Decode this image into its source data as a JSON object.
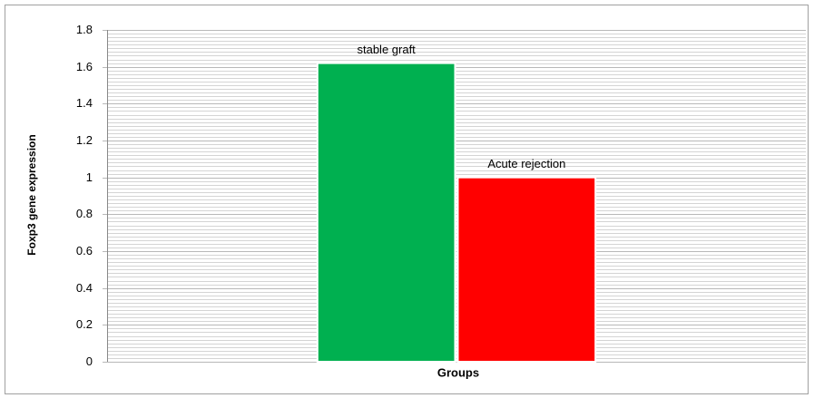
{
  "chart_data": {
    "type": "bar",
    "y_label": "Foxp3 gene expression",
    "x_label": "Groups",
    "categories": [
      null
    ],
    "series": [
      {
        "name": "stable graft",
        "color": "#00b050",
        "values": [
          1.62
        ]
      },
      {
        "name": "Acute rejection",
        "color": "#ff0000",
        "values": [
          1.0
        ]
      }
    ],
    "ylim": [
      0,
      1.8
    ],
    "yticks": [
      0,
      0.2,
      0.4,
      0.6,
      0.8,
      1,
      1.2,
      1.4,
      1.6,
      1.8
    ],
    "grid": true
  }
}
